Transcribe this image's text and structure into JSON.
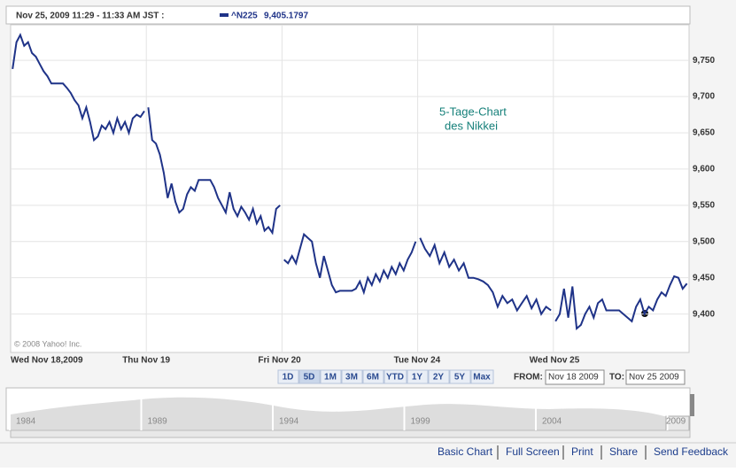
{
  "chart_data": {
    "type": "line",
    "header": "Nov 25, 2009 11:29 - 11:33 AM JST :",
    "quote_symbol": "^N225",
    "quote_value": "9,405.1797",
    "annotation": [
      "5-Tage-Chart",
      "des Nikkei"
    ],
    "copyright": "© 2008 Yahoo! Inc.",
    "categories": [
      "Wed Nov 18,2009",
      "Thu Nov 19",
      "Fri Nov 20",
      "Tue Nov 24",
      "Wed Nov 25"
    ],
    "series": [
      {
        "name": "^N225",
        "color": "#1f3388",
        "values": [
          [
            9738,
            9775,
            9785,
            9770,
            9775,
            9760,
            9755,
            9745,
            9735,
            9728,
            9718,
            9718,
            9718,
            9718,
            9712,
            9705,
            9695,
            9688,
            9670,
            9685,
            9665,
            9640,
            9645,
            9660,
            9655,
            9665,
            9650,
            9670,
            9655,
            9665,
            9650,
            9670,
            9675,
            9672,
            9680
          ],
          [
            9685,
            9640,
            9635,
            9620,
            9595,
            9560,
            9580,
            9555,
            9540,
            9545,
            9565,
            9575,
            9570,
            9585,
            9585,
            9585,
            9585,
            9575,
            9560,
            9550,
            9540,
            9568,
            9545,
            9535,
            9548,
            9540,
            9530,
            9545,
            9525,
            9535,
            9515,
            9520,
            9512,
            9545,
            9550
          ],
          [
            9475,
            9470,
            9480,
            9470,
            9490,
            9510,
            9505,
            9500,
            9470,
            9450,
            9480,
            9460,
            9440,
            9430,
            9432,
            9432,
            9432,
            9432,
            9435,
            9445,
            9430,
            9450,
            9440,
            9455,
            9445,
            9460,
            9450,
            9465,
            9455,
            9470,
            9460,
            9475,
            9485,
            9500
          ],
          [
            9505,
            9490,
            9480,
            9495,
            9470,
            9485,
            9465,
            9475,
            9460,
            9470,
            9450,
            9450,
            9448,
            9445,
            9440,
            9430,
            9410,
            9425,
            9415,
            9420,
            9405,
            9415,
            9425,
            9408,
            9420,
            9400,
            9410,
            9405
          ],
          [
            9390,
            9400,
            9435,
            9395,
            9438,
            9380,
            9385,
            9400,
            9410,
            9395,
            9415,
            9420,
            9405,
            9405,
            9405,
            9405,
            9400,
            9395,
            9390,
            9410,
            9420,
            9400,
            9410,
            9405,
            9420,
            9430,
            9425,
            9440,
            9452,
            9450,
            9435,
            9442
          ]
        ]
      }
    ],
    "ylim": [
      9347,
      9799
    ],
    "yticks": [
      {
        "value": 9400,
        "label": "9,400"
      },
      {
        "value": 9450,
        "label": "9,450"
      },
      {
        "value": 9500,
        "label": "9,500"
      },
      {
        "value": 9550,
        "label": "9,550"
      },
      {
        "value": 9600,
        "label": "9,600"
      },
      {
        "value": 9650,
        "label": "9,650"
      },
      {
        "value": 9700,
        "label": "9,700"
      },
      {
        "value": 9750,
        "label": "9,750"
      }
    ],
    "grid": true,
    "range_buttons": [
      "1D",
      "5D",
      "1M",
      "3M",
      "6M",
      "YTD",
      "1Y",
      "2Y",
      "5Y",
      "Max"
    ],
    "active_button": "5D",
    "from_label": "FROM:",
    "from_value": "Nov 18 2009",
    "to_label": "TO:",
    "to_value": "Nov 25 2009",
    "navigator_years": [
      "1984",
      "1989",
      "1994",
      "1999",
      "2004",
      "2009"
    ],
    "footer_links": [
      "Basic Chart",
      "Full Screen",
      "Print",
      "Share",
      "Send Feedback"
    ]
  }
}
